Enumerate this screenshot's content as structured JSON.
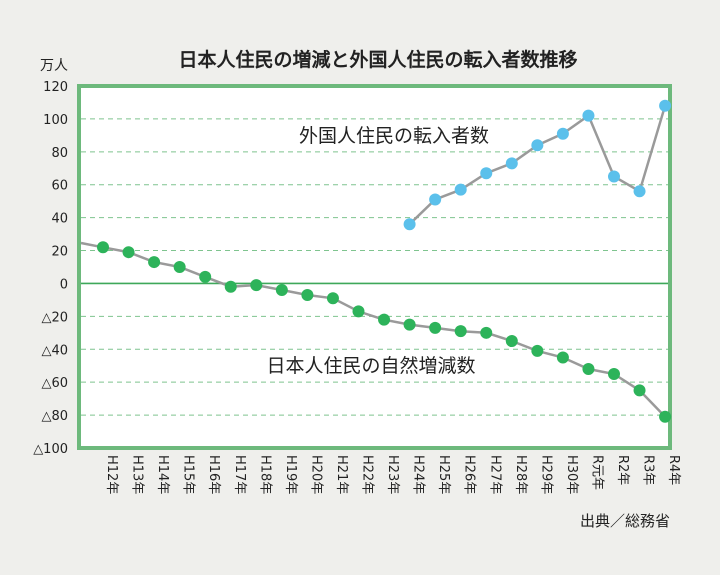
{
  "chart_data": {
    "type": "line",
    "title": "日本人住民の増減と外国人住民の転入者数推移",
    "unit_label": "万人",
    "source": "出典／総務省",
    "categories": [
      "H12年",
      "H13年",
      "H14年",
      "H15年",
      "H16年",
      "H17年",
      "H18年",
      "H19年",
      "H20年",
      "H21年",
      "H22年",
      "H23年",
      "H24年",
      "H25年",
      "H26年",
      "H27年",
      "H28年",
      "H29年",
      "H30年",
      "R元年",
      "R2年",
      "R3年",
      "R4年"
    ],
    "ylim": [
      -100,
      120
    ],
    "yticks": [
      120,
      100,
      80,
      60,
      40,
      20,
      0,
      -20,
      -40,
      -60,
      -80,
      -100
    ],
    "ytick_labels": [
      "120",
      "100",
      "80",
      "60",
      "40",
      "20",
      "0",
      "△20",
      "△40",
      "△60",
      "△80",
      "△100"
    ],
    "grid": true,
    "series": [
      {
        "name": "外国人住民の転入者数",
        "color": "#5bc0eb",
        "values": [
          null,
          null,
          null,
          null,
          null,
          null,
          null,
          null,
          null,
          null,
          null,
          null,
          36,
          51,
          57,
          67,
          73,
          84,
          91,
          102,
          65,
          56,
          108
        ]
      },
      {
        "name": "日本人住民の自然増減数",
        "color": "#2db35a",
        "values": [
          22,
          19,
          13,
          10,
          4,
          -2,
          -1,
          -4,
          -7,
          -9,
          -17,
          -22,
          -25,
          -27,
          -29,
          -30,
          -35,
          -41,
          -45,
          -52,
          -55,
          -65,
          -81
        ]
      }
    ],
    "colors": {
      "frame": "#6db97c",
      "grid": "#7fc48f",
      "zero_line": "#3ea85a",
      "line": "#9a9a9a",
      "text": "#222222"
    }
  }
}
